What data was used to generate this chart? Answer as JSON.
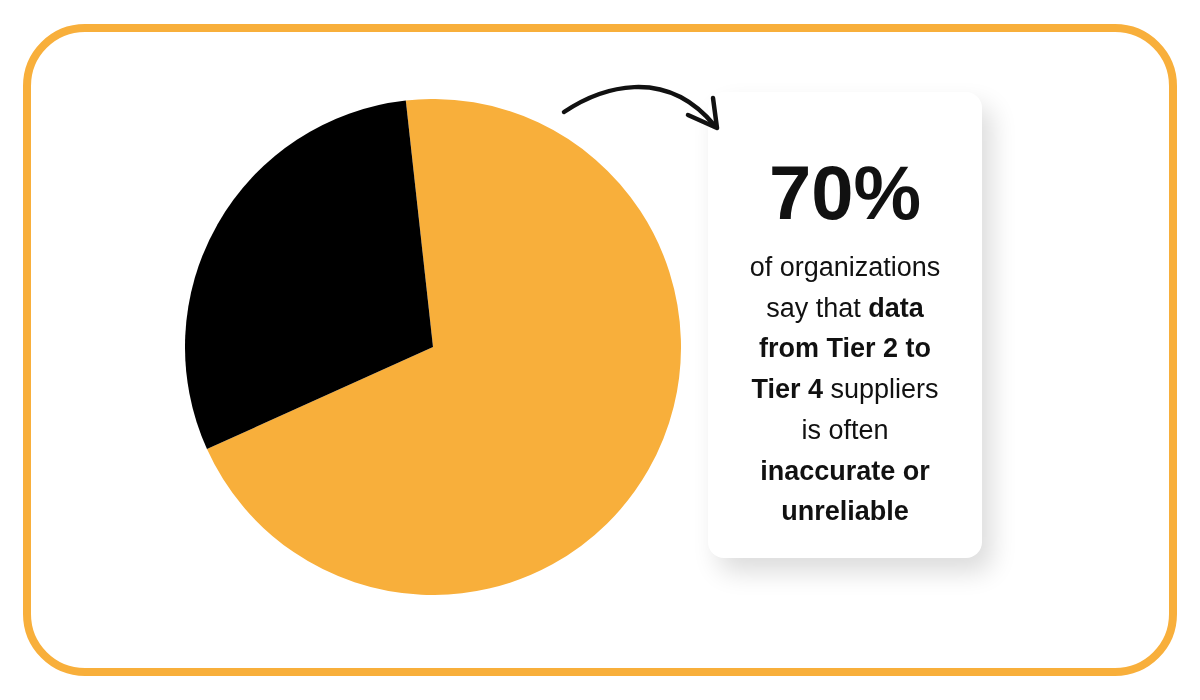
{
  "chart_data": {
    "type": "pie",
    "categories": [
      null,
      null
    ],
    "values": [
      70,
      30
    ],
    "colors": [
      "#f8af3b",
      "#000000"
    ],
    "annotations": [
      "70%",
      "of organizations say that",
      "data from Tier 2 to Tier 4",
      "suppliers is often",
      "inaccurate or unreliable"
    ]
  }
}
